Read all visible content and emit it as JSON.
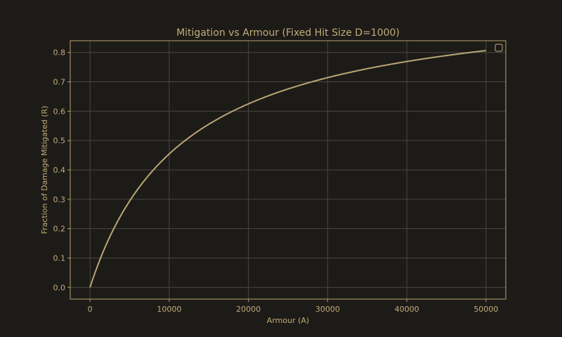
{
  "colors": {
    "background": "#1d1b18",
    "axes": "#b7a26e",
    "text": "#c2ad79",
    "grid": "#4a4740",
    "line": "#b8a674"
  },
  "chart_data": {
    "type": "line",
    "title": "Mitigation vs Armour (Fixed Hit Size D=1000)",
    "xlabel": "Armour (A)",
    "ylabel": "Fraction of Damage Mitigated (R)",
    "xlim": [
      -2500,
      52500
    ],
    "ylim": [
      -0.04,
      0.84
    ],
    "xticks": [
      0,
      10000,
      20000,
      30000,
      40000,
      50000
    ],
    "xtick_labels": [
      "0",
      "10000",
      "20000",
      "30000",
      "40000",
      "50000"
    ],
    "yticks": [
      0.0,
      0.1,
      0.2,
      0.3,
      0.4,
      0.5,
      0.6,
      0.7,
      0.8
    ],
    "ytick_labels": [
      "0.0",
      "0.1",
      "0.2",
      "0.3",
      "0.4",
      "0.5",
      "0.6",
      "0.7",
      "0.8"
    ],
    "grid": true,
    "legend": {
      "position": "top-right",
      "entries": []
    },
    "series": [
      {
        "name": "",
        "x": [
          0,
          1000,
          2000,
          3000,
          4000,
          5000,
          6000,
          7000,
          8000,
          9000,
          10000,
          12000,
          14000,
          16000,
          18000,
          20000,
          22000,
          24000,
          26000,
          28000,
          30000,
          32000,
          34000,
          36000,
          38000,
          40000,
          42000,
          44000,
          46000,
          48000,
          50000
        ],
        "y": [
          0.0,
          0.0769,
          0.1429,
          0.2,
          0.25,
          0.2941,
          0.3333,
          0.3684,
          0.4,
          0.4286,
          0.4545,
          0.5,
          0.5385,
          0.5714,
          0.6,
          0.625,
          0.6471,
          0.6667,
          0.6842,
          0.7,
          0.7143,
          0.7273,
          0.7391,
          0.75,
          0.76,
          0.7692,
          0.7778,
          0.7857,
          0.7931,
          0.8,
          0.8065
        ]
      }
    ]
  }
}
